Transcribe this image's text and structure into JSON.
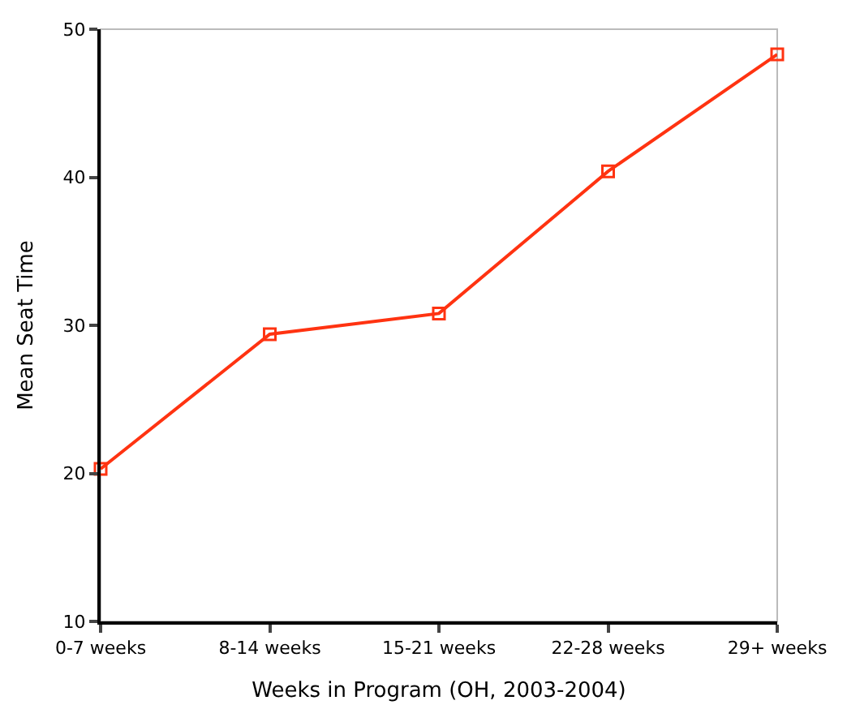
{
  "chart_data": {
    "type": "line",
    "xlabel": "Weeks in Program (OH, 2003-2004)",
    "ylabel": "Mean Seat Time",
    "categories": [
      "0-7 weeks",
      "8-14 weeks",
      "15-21 weeks",
      "22-28 weeks",
      "29+ weeks"
    ],
    "series": [
      {
        "color": "#ff3311",
        "values": [
          20.3,
          29.4,
          30.8,
          40.4,
          48.3
        ]
      }
    ],
    "ylim": [
      10,
      50
    ],
    "yticks": [
      10,
      20,
      30,
      40,
      50
    ],
    "grid": false,
    "legend": false,
    "marker": "square",
    "line_style": "solid"
  }
}
